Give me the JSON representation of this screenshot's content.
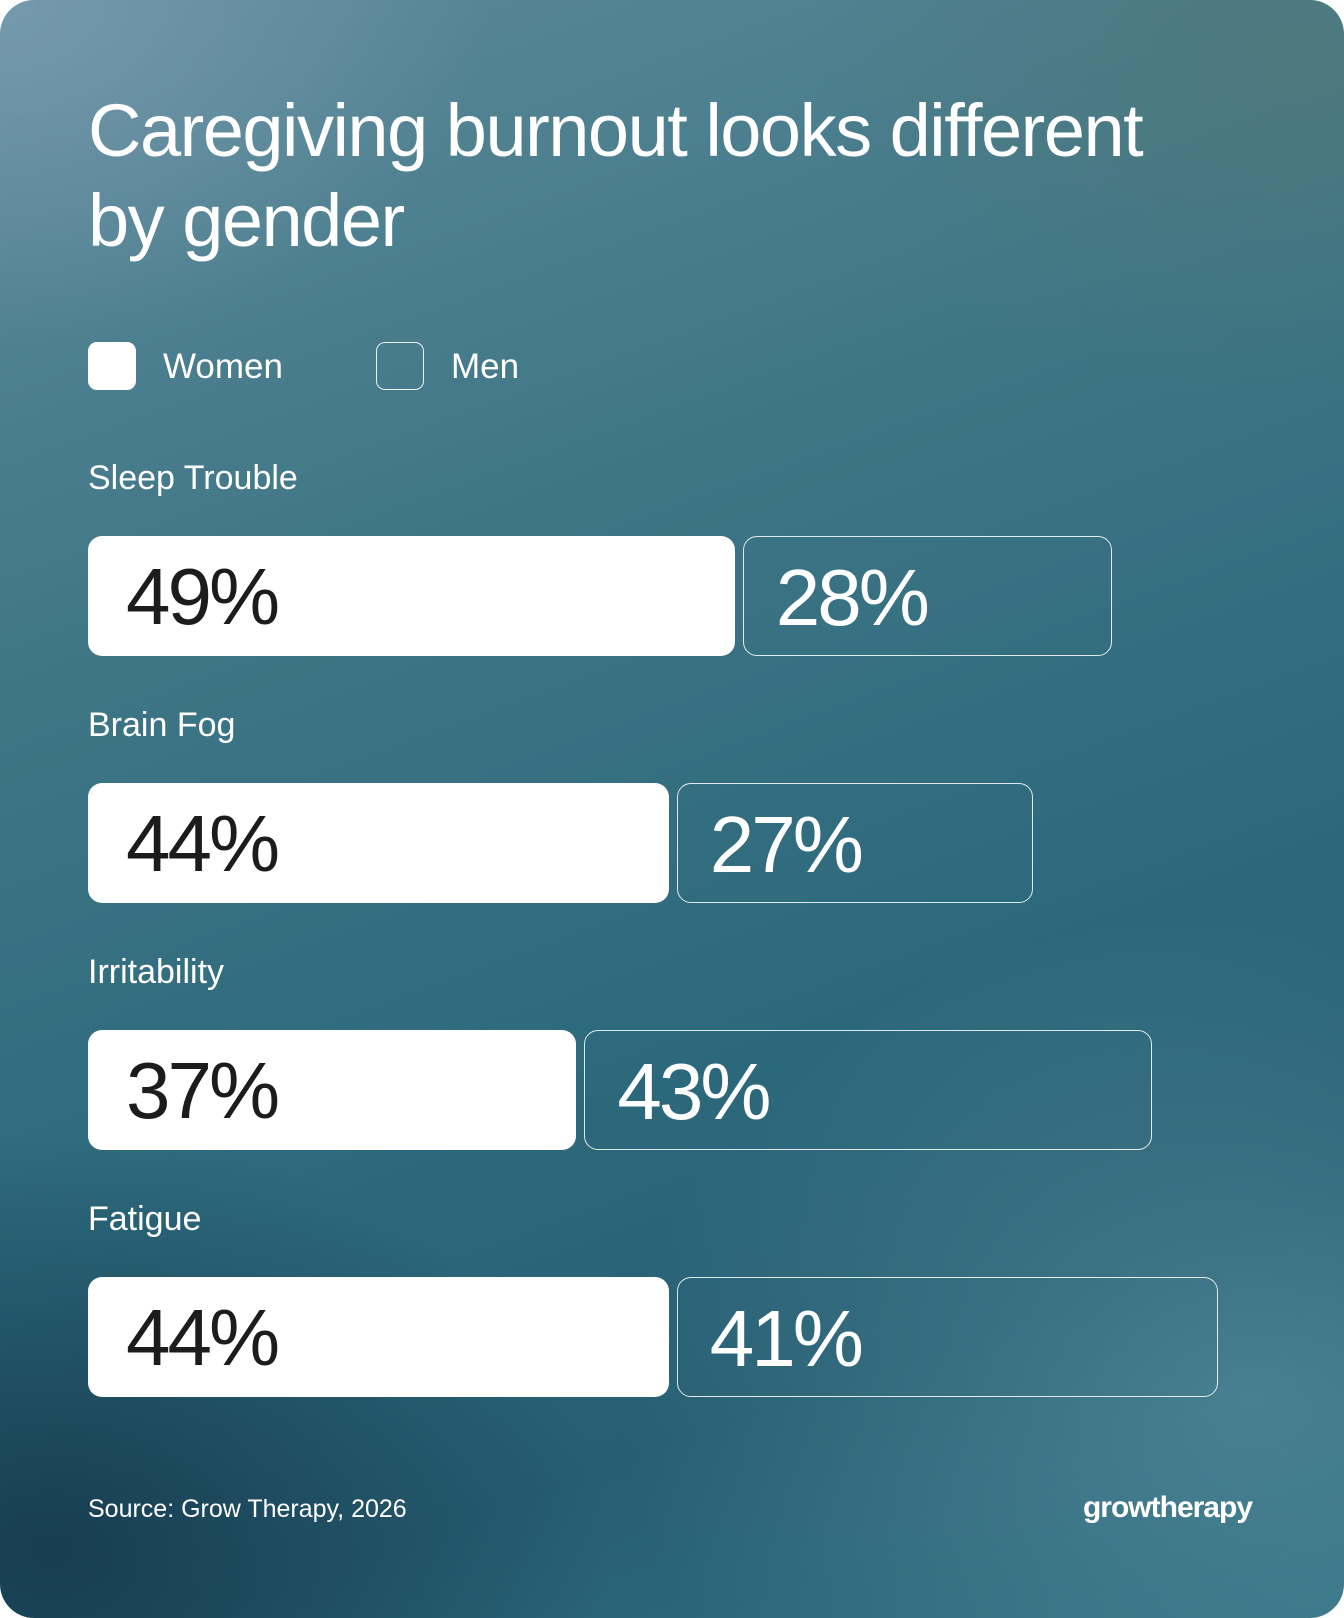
{
  "chart_data": {
    "type": "bar",
    "orientation": "horizontal",
    "stacked": true,
    "title": "Caregiving burnout looks different by gender",
    "categories": [
      "Sleep Trouble",
      "Brain Fog",
      "Irritability",
      "Fatigue"
    ],
    "series": [
      {
        "name": "Women",
        "values": [
          49,
          44,
          37,
          44
        ],
        "labels": [
          "49%",
          "44%",
          "37%",
          "44%"
        ],
        "style": "filled",
        "color": "#ffffff"
      },
      {
        "name": "Men",
        "values": [
          28,
          27,
          43,
          41
        ],
        "labels": [
          "28%",
          "27%",
          "43%",
          "41%"
        ],
        "style": "outline",
        "color": "#ffffff"
      }
    ],
    "legend": "top-left",
    "grid": false,
    "unit": "%"
  },
  "footer": {
    "source": "Source: Grow Therapy, 2026",
    "logo_text": "growtherapy"
  },
  "colors": {
    "background_light": "#5d8a9a",
    "background_dark": "#275e72",
    "women_fill": "#ffffff",
    "men_outline": "#ffffff",
    "women_text": "#1c1c1c"
  }
}
